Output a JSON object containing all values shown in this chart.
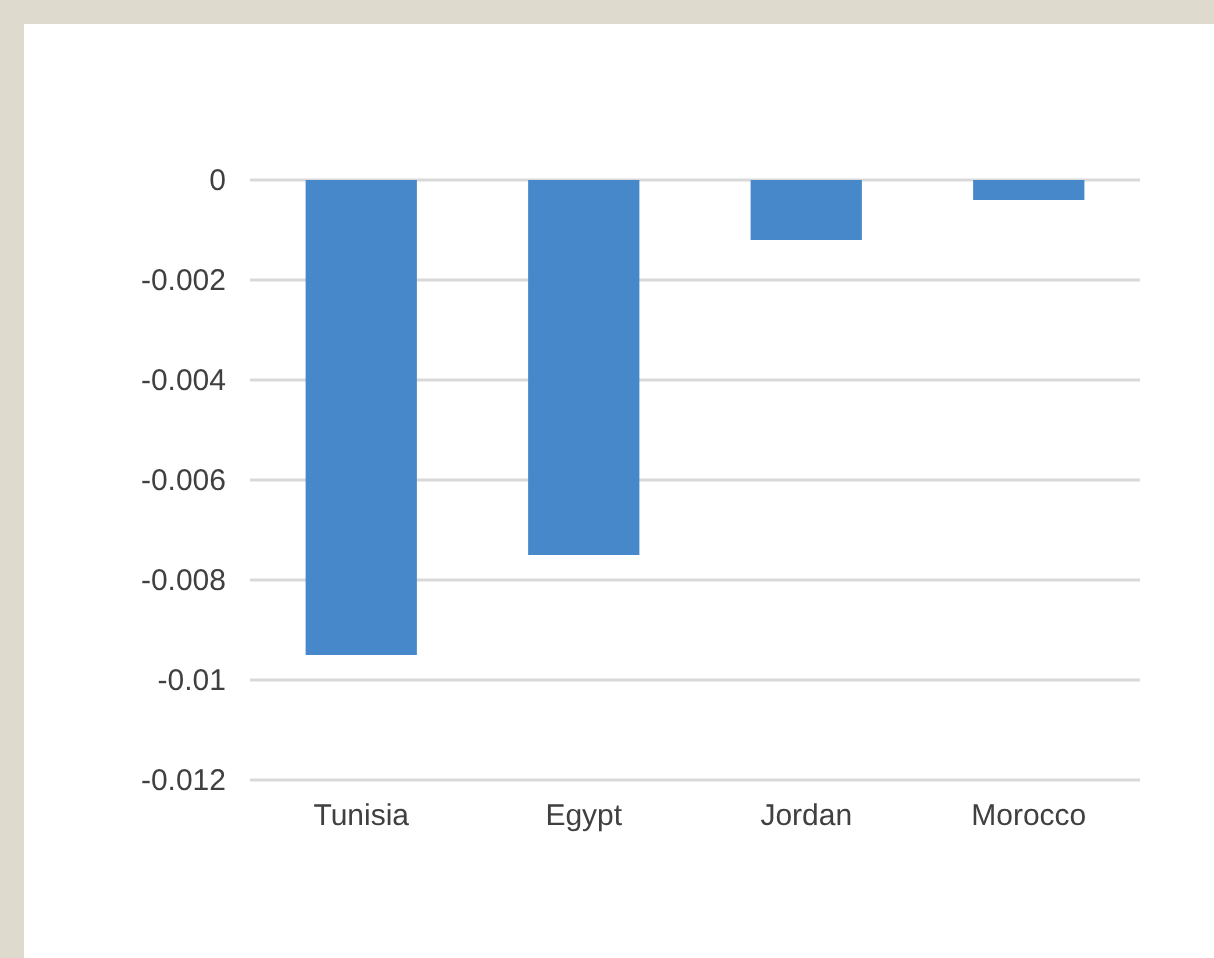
{
  "chart_data": {
    "type": "bar",
    "categories": [
      "Tunisia",
      "Egypt",
      "Jordan",
      "Morocco"
    ],
    "values": [
      -0.0095,
      -0.0075,
      -0.0012,
      -0.0004
    ],
    "color": "#4688c9",
    "ylim": [
      -0.012,
      0
    ],
    "yticks": [
      -0.012,
      -0.01,
      -0.008,
      -0.006,
      -0.004,
      -0.002,
      0
    ],
    "grid": "y"
  }
}
